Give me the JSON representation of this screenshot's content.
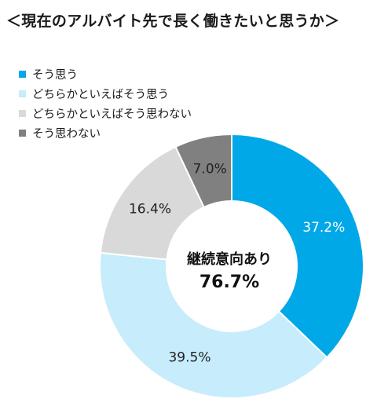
{
  "chart_data": {
    "type": "pie",
    "variant": "donut",
    "title": "＜現在のアルバイト先で長く働きたいと思うか＞",
    "categories": [
      "そう思う",
      "どちらかといえばそう思う",
      "どちらかといえばそう思わない",
      "そう思わない"
    ],
    "values": [
      37.2,
      39.5,
      16.4,
      7.0
    ],
    "value_labels": [
      "37.2%",
      "39.5%",
      "16.4%",
      "7.0%"
    ],
    "colors": [
      "#00a8e8",
      "#c7ecfb",
      "#d9d9d9",
      "#808080"
    ],
    "legend_position": "top-left",
    "center_label": {
      "line1": "継続意向あり",
      "line2": "76.7%"
    }
  }
}
